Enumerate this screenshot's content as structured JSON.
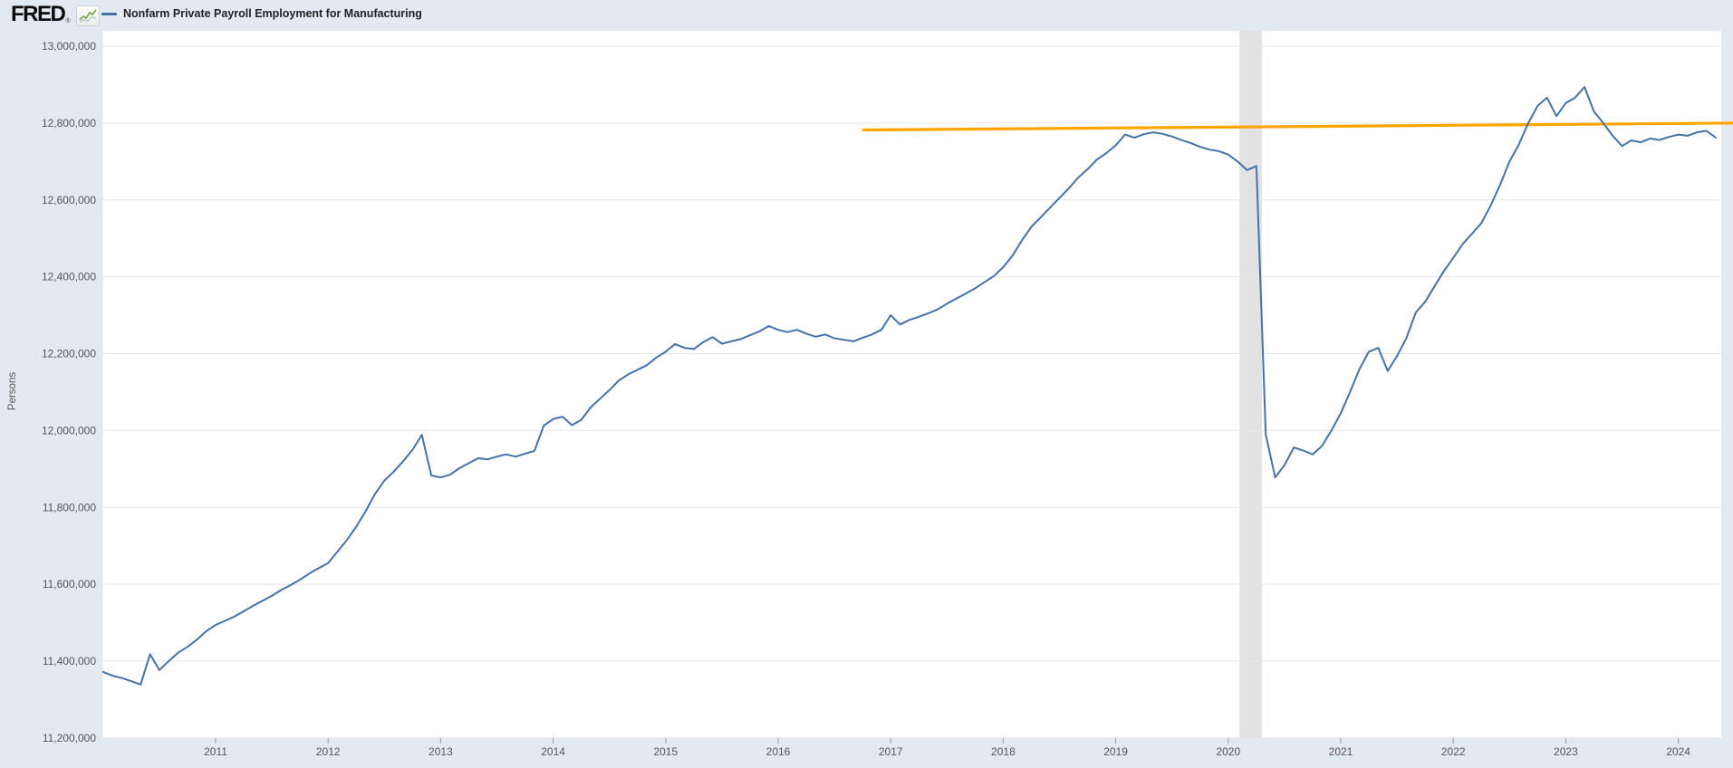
{
  "header": {
    "logo_text": "FRED",
    "registered_mark": "®",
    "legend_series_label": "Nonfarm Private Payroll Employment for Manufacturing"
  },
  "colors": {
    "page_background": "#e3e9f1",
    "plot_background": "#ffffff",
    "gridline": "#e6e6e6",
    "recession_band": "#e2e2e2",
    "series_line": "#4572a7",
    "trend_line": "#ffa500",
    "axis_text": "#555555",
    "tick_mark": "#999999"
  },
  "chart_data": {
    "type": "line",
    "title": "Nonfarm Private Payroll Employment for Manufacturing",
    "ylabel": "Persons",
    "xlabel": "",
    "grid": "horizontal-only",
    "legend_position": "top-left-header",
    "ylim": [
      11200000,
      13000000
    ],
    "xlim_years": [
      2010.0,
      2024.45
    ],
    "y_ticks": [
      {
        "v": 13000000,
        "label": "13,000,000"
      },
      {
        "v": 12800000,
        "label": "12,800,000"
      },
      {
        "v": 12600000,
        "label": "12,600,000"
      },
      {
        "v": 12400000,
        "label": "12,400,000"
      },
      {
        "v": 12200000,
        "label": "12,200,000"
      },
      {
        "v": 12000000,
        "label": "12,000,000"
      },
      {
        "v": 11800000,
        "label": "11,800,000"
      },
      {
        "v": 11600000,
        "label": "11,600,000"
      },
      {
        "v": 11400000,
        "label": "11,400,000"
      },
      {
        "v": 11200000,
        "label": "11,200,000"
      }
    ],
    "x_ticks": [
      2011,
      2012,
      2013,
      2014,
      2015,
      2016,
      2017,
      2018,
      2019,
      2020,
      2021,
      2022,
      2023,
      2024
    ],
    "recession_band": {
      "start_year": 2020.1,
      "end_year": 2020.3
    },
    "trend_line": {
      "name": "horizontal reference line",
      "points": [
        {
          "year": 2016.76,
          "value": 12782000
        },
        {
          "year": 2024.49,
          "value": 12800000
        }
      ]
    },
    "series": [
      {
        "name": "Nonfarm Private Payroll Employment for Manufacturing",
        "units": "Persons",
        "frequency": "monthly",
        "start_year": 2010.0,
        "values": [
          11372000,
          11362000,
          11356000,
          11348000,
          11339000,
          11418000,
          11377000,
          11400000,
          11422000,
          11437000,
          11456000,
          11478000,
          11494000,
          11505000,
          11516000,
          11530000,
          11544000,
          11557000,
          11570000,
          11585000,
          11598000,
          11612000,
          11628000,
          11642000,
          11655000,
          11685000,
          11715000,
          11750000,
          11790000,
          11835000,
          11870000,
          11893000,
          11920000,
          11950000,
          11989000,
          11883000,
          11878000,
          11885000,
          11902000,
          11915000,
          11928000,
          11925000,
          11932000,
          11938000,
          11932000,
          11940000,
          11947000,
          12013000,
          12030000,
          12036000,
          12014000,
          12028000,
          12060000,
          12083000,
          12105000,
          12130000,
          12146000,
          12158000,
          12170000,
          12190000,
          12205000,
          12225000,
          12215000,
          12212000,
          12230000,
          12243000,
          12226000,
          12232000,
          12238000,
          12248000,
          12258000,
          12272000,
          12262000,
          12256000,
          12262000,
          12252000,
          12244000,
          12250000,
          12240000,
          12236000,
          12232000,
          12241000,
          12250000,
          12262000,
          12300000,
          12276000,
          12288000,
          12296000,
          12305000,
          12315000,
          12330000,
          12343000,
          12356000,
          12370000,
          12386000,
          12402000,
          12425000,
          12455000,
          12495000,
          12530000,
          12555000,
          12580000,
          12605000,
          12630000,
          12658000,
          12680000,
          12705000,
          12722000,
          12742000,
          12770000,
          12762000,
          12771000,
          12776000,
          12772000,
          12765000,
          12756000,
          12748000,
          12738000,
          12731000,
          12727000,
          12718000,
          12700000,
          12678000,
          12688000,
          11990000,
          11878000,
          11910000,
          11956000,
          11948000,
          11938000,
          11960000,
          12000000,
          12045000,
          12100000,
          12160000,
          12205000,
          12215000,
          12155000,
          12194000,
          12240000,
          12307000,
          12335000,
          12375000,
          12415000,
          12449000,
          12485000,
          12512000,
          12540000,
          12586000,
          12640000,
          12700000,
          12744000,
          12800000,
          12845000,
          12866000,
          12818000,
          12852000,
          12866000,
          12894000,
          12830000,
          12800000,
          12767000,
          12740000,
          12755000,
          12750000,
          12760000,
          12756000,
          12764000,
          12770000,
          12767000,
          12776000,
          12780000,
          12762000
        ]
      }
    ]
  }
}
